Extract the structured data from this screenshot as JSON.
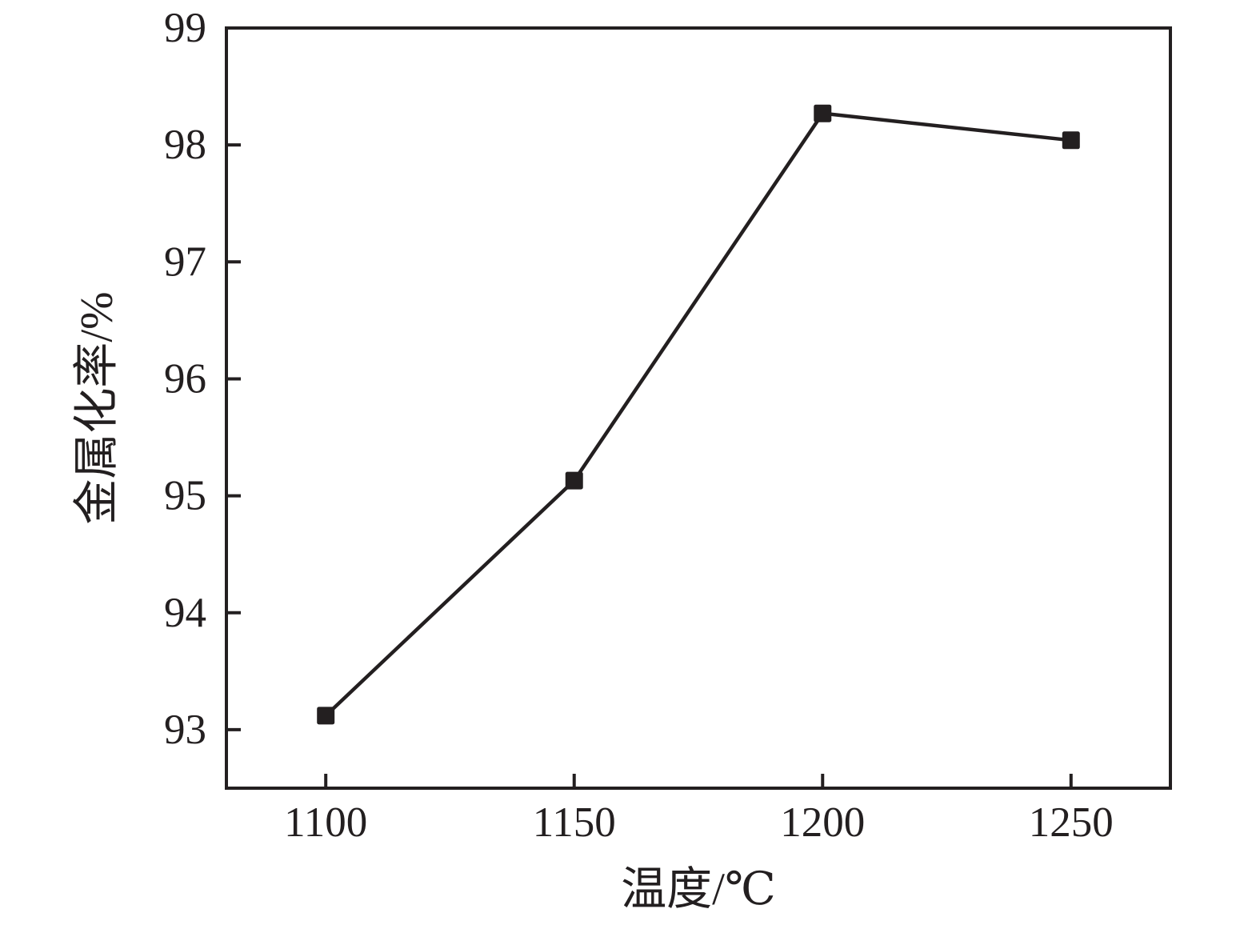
{
  "chart_data": {
    "type": "line",
    "title": "",
    "xlabel": "温度/℃",
    "ylabel": "金属化率/%",
    "x": [
      1100,
      1150,
      1200,
      1250
    ],
    "series": [
      {
        "name": "金属化率",
        "values": [
          93.12,
          95.13,
          98.27,
          98.04
        ]
      }
    ],
    "xlim": [
      1080,
      1270
    ],
    "ylim": [
      92.5,
      99
    ],
    "xticks": [
      1100,
      1150,
      1200,
      1250
    ],
    "yticks": [
      93,
      94,
      95,
      96,
      97,
      98,
      99
    ],
    "grid": false,
    "legend": "none",
    "marker": "square",
    "marker_size": 22,
    "line_width": 4.5,
    "axis_width": 4,
    "tick_length": 18,
    "tick_direction": "in",
    "line_color": "#231f20",
    "axis_color": "#231f20",
    "background": "#ffffff"
  }
}
